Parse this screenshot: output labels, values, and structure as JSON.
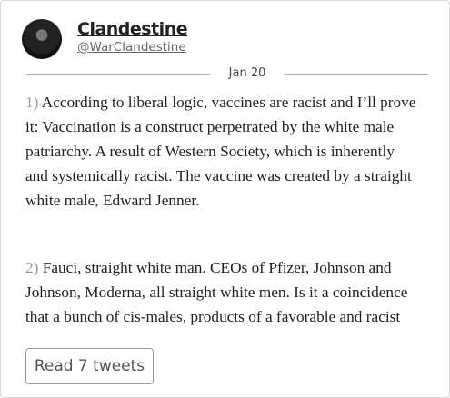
{
  "header": {
    "name": "Clandestine",
    "handle": "@WarClandestine",
    "date": "Jan 20"
  },
  "tweets": [
    {
      "number": "1)",
      "lines": [
        "According to liberal logic, vaccines are racist and I’ll prove",
        "it: Vaccination is a construct perpetrated by the white male",
        "patriarchy. A result of Western Society, which is inherently",
        "and systemically racist. The vaccine was created by a straight",
        "white male, Edward Jenner."
      ]
    },
    {
      "number": "2)",
      "lines": [
        "Fauci, straight white man. CEOs of Pfizer, Johnson and",
        "Johnson, Moderna, all straight white men. Is it a coincidence",
        "that a bunch of cis-males, products of a favorable and racist"
      ]
    }
  ],
  "button": "Read 7 tweets"
}
